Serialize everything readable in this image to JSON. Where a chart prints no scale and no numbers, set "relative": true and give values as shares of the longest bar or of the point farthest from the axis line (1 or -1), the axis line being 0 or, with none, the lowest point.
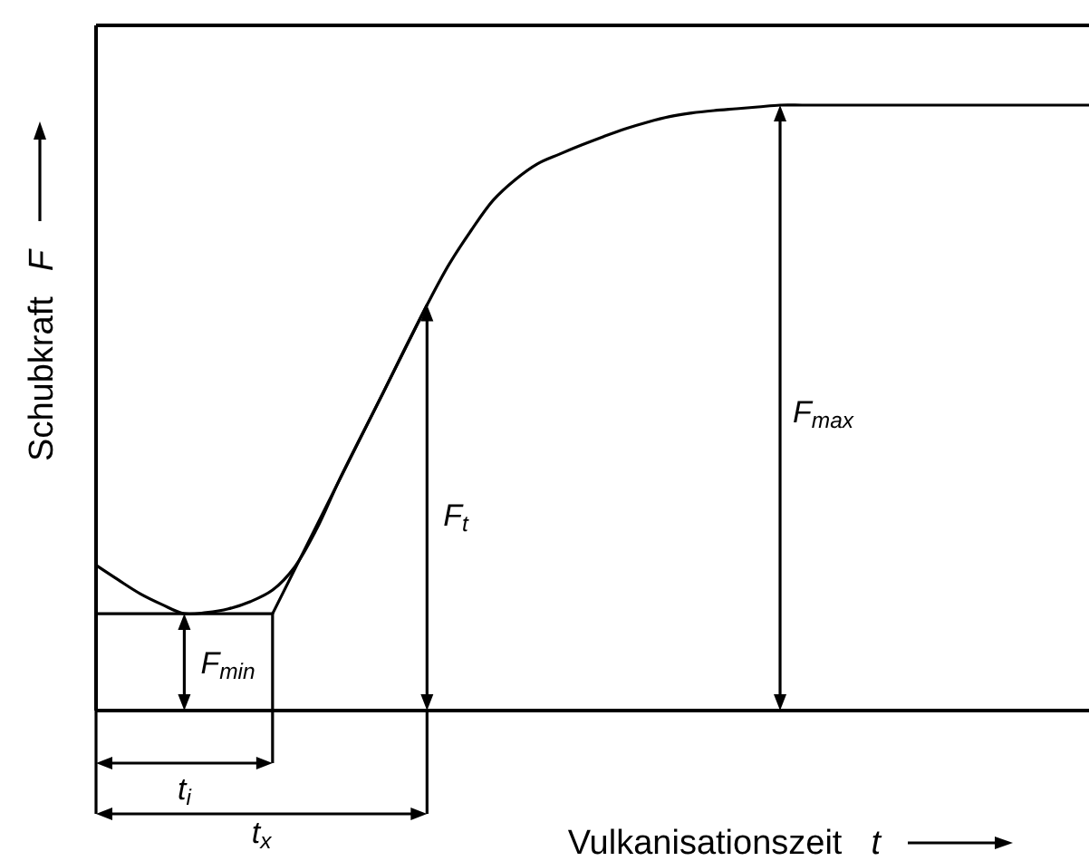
{
  "chart_data": {
    "type": "line",
    "relative": true,
    "xlabel": "Vulkanisationszeit t",
    "ylabel": "Schubkraft F",
    "categories": [
      null,
      null,
      null,
      null,
      null,
      null,
      null,
      null,
      null,
      null,
      null,
      null,
      null,
      null,
      null,
      null,
      null,
      null,
      null,
      null,
      null,
      null,
      null,
      null,
      null,
      null,
      null,
      null,
      null,
      null,
      null,
      null,
      null,
      null,
      null,
      null,
      null,
      null,
      null,
      null,
      null,
      null,
      null,
      null,
      null,
      null
    ],
    "series": [
      {
        "color": "#000000",
        "values": [
          0.24,
          0.216,
          0.193,
          0.175,
          0.16,
          0.162,
          0.168,
          0.18,
          0.199,
          0.237,
          0.3,
          0.379,
          0.452,
          0.524,
          0.598,
          0.67,
          0.737,
          0.793,
          0.843,
          0.877,
          0.903,
          0.919,
          0.934,
          0.948,
          0.961,
          0.972,
          0.981,
          0.987,
          0.991,
          0.994,
          0.997,
          1.0,
          1.0,
          1.0,
          1.0,
          1.0,
          1.0,
          1.0,
          1.0,
          1.0,
          1.0,
          1.0,
          1.0,
          1.0,
          1.0,
          1.0
        ]
      },
      {
        "type": "line",
        "color": "#000000",
        "values": [
          null,
          null,
          null,
          null,
          null,
          null,
          null,
          null,
          0.16,
          null,
          null,
          null,
          null,
          null,
          null,
          0.67,
          null,
          null,
          null,
          null,
          null,
          null,
          null,
          null,
          null,
          null,
          null,
          null,
          null,
          null,
          null,
          null,
          null,
          null,
          null,
          null,
          null,
          null,
          null,
          null,
          null,
          null,
          null,
          null,
          null,
          null
        ]
      }
    ],
    "annotations": [
      "F$_{min}$",
      "F$_{t}$",
      "F$_{max}$",
      "t$_{i}$",
      "t$_{x}$"
    ]
  }
}
